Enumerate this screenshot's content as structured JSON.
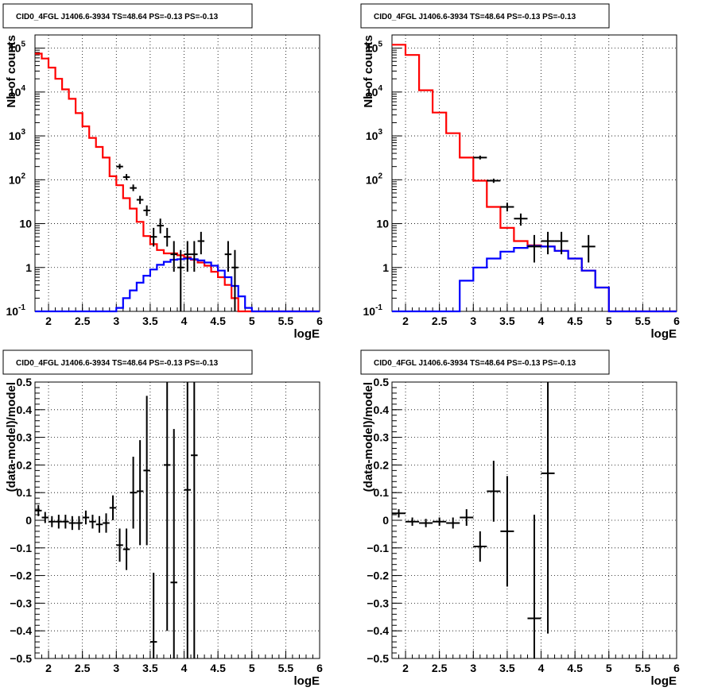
{
  "chart_data": [
    {
      "type": "line",
      "panel": "top-left",
      "title": "CID0_4FGL J1406.6-3934 TS=48.64 PS=-0.13 PS=-0.13",
      "xlabel": "logE",
      "ylabel": "Nb of counts",
      "xlim": [
        1.8,
        6.0
      ],
      "ylim": [
        0.1,
        200000
      ],
      "yscale": "log",
      "grid": true,
      "x_ticks": [
        "2",
        "2.5",
        "3",
        "3.5",
        "4",
        "4.5",
        "5",
        "5.5",
        "6"
      ],
      "y_ticks": [
        "10^-1",
        "1",
        "10",
        "10^2",
        "10^3",
        "10^4",
        "10^5"
      ],
      "bin_edges": [
        1.8,
        1.9,
        2.0,
        2.1,
        2.2,
        2.3,
        2.4,
        2.5,
        2.6,
        2.7,
        2.8,
        2.9,
        3.0,
        3.1,
        3.2,
        3.3,
        3.4,
        3.5,
        3.6,
        3.7,
        3.8,
        3.9,
        4.0,
        4.1,
        4.2,
        4.3,
        4.4,
        4.5,
        4.6,
        4.7,
        4.8,
        4.9,
        5.0,
        5.1,
        5.2,
        5.3,
        5.4,
        5.5,
        5.6,
        5.7,
        5.8,
        5.9,
        6.0
      ],
      "series": [
        {
          "name": "",
          "kind": "step",
          "color": "#ff0000",
          "values": [
            75000,
            58000,
            36000,
            20000,
            11500,
            7000,
            3300,
            1650,
            900,
            560,
            320,
            120,
            75,
            38,
            22,
            11,
            5.2,
            3.4,
            2.5,
            2.1,
            2.1,
            1.9,
            1.7,
            1.5,
            1.3,
            1.1,
            0.8,
            0.6,
            0.4,
            0.2,
            0.1,
            0.1,
            0.1,
            0.1,
            0.1,
            0.1,
            0.1,
            0.1,
            0.1,
            0.1,
            0.1,
            0.1
          ]
        },
        {
          "name": "",
          "kind": "step",
          "color": "#0000ff",
          "values": [
            0.1,
            0.1,
            0.1,
            0.1,
            0.1,
            0.1,
            0.1,
            0.1,
            0.1,
            0.1,
            0.1,
            0.1,
            0.12,
            0.2,
            0.3,
            0.45,
            0.65,
            0.9,
            1.15,
            1.35,
            1.5,
            1.55,
            1.6,
            1.55,
            1.45,
            1.3,
            1.1,
            0.85,
            0.6,
            0.38,
            0.22,
            0.12,
            0.1,
            0.1,
            0.1,
            0.1,
            0.1,
            0.1,
            0.1,
            0.1,
            0.1,
            0.1
          ]
        },
        {
          "name": "",
          "kind": "errorbar",
          "color": "#000000",
          "points": [
            {
              "x": 3.05,
              "y": 200,
              "lo": 175,
              "hi": 230
            },
            {
              "x": 3.15,
              "y": 115,
              "lo": 98,
              "hi": 135
            },
            {
              "x": 3.25,
              "y": 65,
              "lo": 55,
              "hi": 78
            },
            {
              "x": 3.35,
              "y": 35,
              "lo": 28,
              "hi": 43
            },
            {
              "x": 3.45,
              "y": 20,
              "lo": 15,
              "hi": 26
            },
            {
              "x": 3.55,
              "y": 5,
              "lo": 3,
              "hi": 8
            },
            {
              "x": 3.65,
              "y": 9,
              "lo": 6,
              "hi": 13
            },
            {
              "x": 3.75,
              "y": 5,
              "lo": 3,
              "hi": 8
            },
            {
              "x": 3.85,
              "y": 2,
              "lo": 0.8,
              "hi": 4
            },
            {
              "x": 3.95,
              "y": 1,
              "lo": 0.1,
              "hi": 2.5
            },
            {
              "x": 4.05,
              "y": 2,
              "lo": 0.8,
              "hi": 4
            },
            {
              "x": 4.15,
              "y": 2,
              "lo": 0.8,
              "hi": 4
            },
            {
              "x": 4.25,
              "y": 4,
              "lo": 2,
              "hi": 6.5
            },
            {
              "x": 4.65,
              "y": 2,
              "lo": 0.8,
              "hi": 4
            },
            {
              "x": 4.75,
              "y": 1,
              "lo": 0.1,
              "hi": 2.5
            }
          ]
        }
      ]
    },
    {
      "type": "line",
      "panel": "top-right",
      "title": "CID0_4FGL J1406.6-3934 TS=48.64 PS=-0.13 PS=-0.13",
      "xlabel": "logE",
      "ylabel": "Nb of counts",
      "xlim": [
        1.8,
        6.0
      ],
      "ylim": [
        0.1,
        200000
      ],
      "yscale": "log",
      "grid": true,
      "x_ticks": [
        "2",
        "2.5",
        "3",
        "3.5",
        "4",
        "4.5",
        "5",
        "5.5",
        "6"
      ],
      "y_ticks": [
        "10^-1",
        "1",
        "10",
        "10^2",
        "10^3",
        "10^4",
        "10^5"
      ],
      "bin_edges": [
        1.8,
        2.0,
        2.2,
        2.4,
        2.6,
        2.8,
        3.0,
        3.2,
        3.4,
        3.6,
        3.8,
        4.0,
        4.2,
        4.4,
        4.6,
        4.8,
        5.0,
        5.2,
        5.4,
        5.6,
        5.8,
        6.0
      ],
      "series": [
        {
          "name": "",
          "kind": "step",
          "color": "#ff0000",
          "values": [
            120000,
            70000,
            11000,
            3400,
            1150,
            320,
            95,
            24,
            8,
            4,
            3.2,
            3.0,
            2.4,
            1.6,
            0.85,
            0.35,
            0.1,
            0.1,
            0.1,
            0.1,
            0.1
          ]
        },
        {
          "name": "",
          "kind": "step",
          "color": "#0000ff",
          "values": [
            0.1,
            0.1,
            0.1,
            0.1,
            0.1,
            0.5,
            1.0,
            1.6,
            2.3,
            2.8,
            3.1,
            3.0,
            2.4,
            1.6,
            0.85,
            0.35,
            0.1,
            0.1,
            0.1,
            0.1,
            0.1
          ]
        },
        {
          "name": "",
          "kind": "errorbar",
          "color": "#000000",
          "points": [
            {
              "x": 3.1,
              "y": 320,
              "lo": 290,
              "hi": 355
            },
            {
              "x": 3.3,
              "y": 95,
              "lo": 85,
              "hi": 106
            },
            {
              "x": 3.5,
              "y": 24,
              "lo": 19,
              "hi": 30
            },
            {
              "x": 3.7,
              "y": 13,
              "lo": 9,
              "hi": 17
            },
            {
              "x": 3.9,
              "y": 3,
              "lo": 1.3,
              "hi": 5.5
            },
            {
              "x": 4.1,
              "y": 4,
              "lo": 2,
              "hi": 6.5
            },
            {
              "x": 4.3,
              "y": 4,
              "lo": 2,
              "hi": 6.5
            },
            {
              "x": 4.7,
              "y": 3,
              "lo": 1.3,
              "hi": 5.5
            }
          ]
        }
      ]
    },
    {
      "type": "scatter",
      "panel": "bottom-left",
      "title": "CID0_4FGL J1406.6-3934 TS=48.64 PS=-0.13 PS=-0.13",
      "xlabel": "logE",
      "ylabel": "(data-model)/model",
      "xlim": [
        1.8,
        6.0
      ],
      "ylim": [
        -0.5,
        0.5
      ],
      "grid": true,
      "x_ticks": [
        "2",
        "2.5",
        "3",
        "3.5",
        "4",
        "4.5",
        "5",
        "5.5",
        "6"
      ],
      "y_ticks": [
        "−0.5",
        "−0.4",
        "−0.3",
        "−0.2",
        "−0.1",
        "0",
        "0.1",
        "0.2",
        "0.3",
        "0.4",
        "0.5"
      ],
      "series": [
        {
          "name": "",
          "kind": "errorbar",
          "color": "#000000",
          "half_width": 0.05,
          "points": [
            {
              "x": 1.85,
              "y": 0.035,
              "lo": 0.015,
              "hi": 0.055
            },
            {
              "x": 1.95,
              "y": 0.01,
              "lo": -0.01,
              "hi": 0.03
            },
            {
              "x": 2.05,
              "y": -0.005,
              "lo": -0.025,
              "hi": 0.015
            },
            {
              "x": 2.15,
              "y": -0.005,
              "lo": -0.03,
              "hi": 0.02
            },
            {
              "x": 2.25,
              "y": -0.005,
              "lo": -0.03,
              "hi": 0.02
            },
            {
              "x": 2.35,
              "y": -0.01,
              "lo": -0.035,
              "hi": 0.015
            },
            {
              "x": 2.45,
              "y": -0.01,
              "lo": -0.035,
              "hi": 0.015
            },
            {
              "x": 2.55,
              "y": 0.01,
              "lo": -0.015,
              "hi": 0.035
            },
            {
              "x": 2.65,
              "y": -0.005,
              "lo": -0.03,
              "hi": 0.02
            },
            {
              "x": 2.75,
              "y": -0.015,
              "lo": -0.045,
              "hi": 0.015
            },
            {
              "x": 2.85,
              "y": -0.01,
              "lo": -0.045,
              "hi": 0.025
            },
            {
              "x": 2.95,
              "y": 0.045,
              "lo": 0.0,
              "hi": 0.09
            },
            {
              "x": 3.05,
              "y": -0.09,
              "lo": -0.15,
              "hi": -0.03
            },
            {
              "x": 3.15,
              "y": -0.105,
              "lo": -0.18,
              "hi": -0.03
            },
            {
              "x": 3.25,
              "y": 0.1,
              "lo": -0.03,
              "hi": 0.23
            },
            {
              "x": 3.35,
              "y": 0.105,
              "lo": -0.09,
              "hi": 0.29
            },
            {
              "x": 3.45,
              "y": 0.18,
              "lo": -0.09,
              "hi": 0.45
            },
            {
              "x": 3.55,
              "y": -0.44,
              "lo": -0.5,
              "hi": -0.19
            },
            {
              "x": 3.75,
              "y": 0.2,
              "lo": -0.4,
              "hi": 0.5
            },
            {
              "x": 3.85,
              "y": -0.225,
              "lo": -0.5,
              "hi": 0.33
            },
            {
              "x": 4.05,
              "y": 0.11,
              "lo": -0.5,
              "hi": 0.5
            },
            {
              "x": 4.15,
              "y": 0.235,
              "lo": -0.5,
              "hi": 0.5
            }
          ]
        }
      ]
    },
    {
      "type": "scatter",
      "panel": "bottom-right",
      "title": "CID0_4FGL J1406.6-3934 TS=48.64 PS=-0.13 PS=-0.13",
      "xlabel": "logE",
      "ylabel": "(data-model)/model",
      "xlim": [
        1.8,
        6.0
      ],
      "ylim": [
        -0.5,
        0.5
      ],
      "grid": true,
      "x_ticks": [
        "2",
        "2.5",
        "3",
        "3.5",
        "4",
        "4.5",
        "5",
        "5.5",
        "6"
      ],
      "y_ticks": [
        "−0.5",
        "−0.4",
        "−0.3",
        "−0.2",
        "−0.1",
        "0",
        "0.1",
        "0.2",
        "0.3",
        "0.4",
        "0.5"
      ],
      "series": [
        {
          "name": "",
          "kind": "errorbar",
          "color": "#000000",
          "half_width": 0.1,
          "points": [
            {
              "x": 1.9,
              "y": 0.025,
              "lo": 0.01,
              "hi": 0.04
            },
            {
              "x": 2.1,
              "y": -0.005,
              "lo": -0.02,
              "hi": 0.01
            },
            {
              "x": 2.3,
              "y": -0.01,
              "lo": -0.025,
              "hi": 0.005
            },
            {
              "x": 2.5,
              "y": -0.005,
              "lo": -0.02,
              "hi": 0.01
            },
            {
              "x": 2.7,
              "y": -0.01,
              "lo": -0.03,
              "hi": 0.01
            },
            {
              "x": 2.9,
              "y": 0.01,
              "lo": -0.02,
              "hi": 0.04
            },
            {
              "x": 3.1,
              "y": -0.095,
              "lo": -0.15,
              "hi": -0.04
            },
            {
              "x": 3.3,
              "y": 0.105,
              "lo": -0.005,
              "hi": 0.215
            },
            {
              "x": 3.5,
              "y": -0.04,
              "lo": -0.24,
              "hi": 0.16
            },
            {
              "x": 3.9,
              "y": -0.355,
              "lo": -0.5,
              "hi": 0.02
            },
            {
              "x": 4.1,
              "y": 0.17,
              "lo": -0.41,
              "hi": 0.5
            }
          ]
        }
      ]
    }
  ]
}
